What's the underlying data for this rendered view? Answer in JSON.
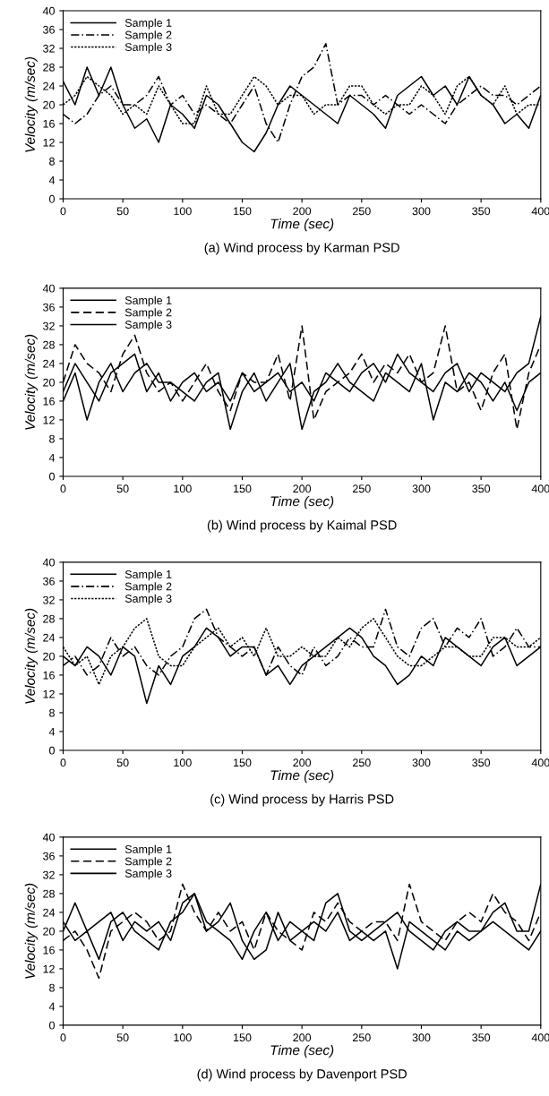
{
  "chart_data": [
    {
      "type": "line",
      "title": "(a) Wind process by Karman PSD",
      "xlabel": "Time (sec)",
      "ylabel": "Velocity (m/sec)",
      "xlim": [
        0,
        400
      ],
      "ylim": [
        0,
        40
      ],
      "xticks": [
        0,
        50,
        100,
        150,
        200,
        250,
        300,
        350,
        400
      ],
      "yticks": [
        0,
        4,
        8,
        12,
        16,
        20,
        24,
        28,
        32,
        36,
        40
      ],
      "grid": false,
      "legend": "top left",
      "marker": "none",
      "x": [
        0,
        10,
        20,
        30,
        40,
        50,
        60,
        70,
        80,
        90,
        100,
        110,
        120,
        130,
        140,
        150,
        160,
        170,
        180,
        190,
        200,
        210,
        220,
        230,
        240,
        250,
        260,
        270,
        280,
        290,
        300,
        310,
        320,
        330,
        340,
        350,
        360,
        370,
        380,
        390,
        400
      ],
      "series": [
        {
          "name": "Sample 1",
          "color": "#000000",
          "line_style": "solid",
          "values": [
            25,
            20,
            28,
            22,
            28,
            20,
            15,
            17,
            12,
            20,
            18,
            15,
            22,
            20,
            16,
            12,
            10,
            14,
            20,
            24,
            22,
            20,
            18,
            16,
            22,
            20,
            18,
            15,
            22,
            24,
            26,
            22,
            24,
            20,
            26,
            22,
            20,
            16,
            18,
            15,
            22
          ]
        },
        {
          "name": "Sample 2",
          "color": "#000000",
          "line_style": "dashdot",
          "values": [
            18,
            16,
            18,
            22,
            24,
            20,
            20,
            22,
            26,
            20,
            22,
            18,
            20,
            18,
            16,
            20,
            24,
            16,
            12,
            20,
            26,
            28,
            33,
            20,
            22,
            22,
            20,
            22,
            20,
            18,
            20,
            18,
            16,
            20,
            22,
            24,
            22,
            22,
            20,
            22,
            24
          ]
        },
        {
          "name": "Sample 3",
          "color": "#000000",
          "line_style": "dotted",
          "values": [
            20,
            22,
            26,
            24,
            22,
            18,
            20,
            18,
            24,
            20,
            16,
            16,
            24,
            18,
            18,
            22,
            26,
            24,
            20,
            22,
            22,
            18,
            20,
            20,
            24,
            24,
            20,
            18,
            20,
            20,
            24,
            22,
            18,
            24,
            26,
            22,
            20,
            24,
            18,
            20,
            20
          ]
        }
      ]
    },
    {
      "type": "line",
      "title": "(b) Wind process by Kaimal PSD",
      "xlabel": "Time (sec)",
      "ylabel": "Velocity (m/sec)",
      "xlim": [
        0,
        400
      ],
      "ylim": [
        0,
        40
      ],
      "xticks": [
        0,
        50,
        100,
        150,
        200,
        250,
        300,
        350,
        400
      ],
      "yticks": [
        0,
        4,
        8,
        12,
        16,
        20,
        24,
        28,
        32,
        36,
        40
      ],
      "grid": false,
      "legend": "top left",
      "marker": "none",
      "x": [
        0,
        10,
        20,
        30,
        40,
        50,
        60,
        70,
        80,
        90,
        100,
        110,
        120,
        130,
        140,
        150,
        160,
        170,
        180,
        190,
        200,
        210,
        220,
        230,
        240,
        250,
        260,
        270,
        280,
        290,
        300,
        310,
        320,
        330,
        340,
        350,
        360,
        370,
        380,
        390,
        400
      ],
      "series": [
        {
          "name": "Sample 1",
          "color": "#000000",
          "line_style": "solid",
          "values": [
            16,
            22,
            12,
            20,
            24,
            18,
            22,
            24,
            20,
            20,
            18,
            16,
            20,
            22,
            10,
            18,
            22,
            16,
            20,
            24,
            10,
            18,
            20,
            24,
            20,
            18,
            16,
            22,
            20,
            18,
            24,
            12,
            20,
            18,
            22,
            20,
            16,
            20,
            14,
            20,
            22
          ]
        },
        {
          "name": "Sample 2",
          "color": "#000000",
          "line_style": "dashed",
          "values": [
            20,
            28,
            24,
            22,
            18,
            26,
            30,
            22,
            18,
            20,
            16,
            20,
            24,
            18,
            14,
            22,
            20,
            20,
            26,
            16,
            32,
            12,
            18,
            20,
            22,
            26,
            20,
            24,
            22,
            26,
            20,
            22,
            32,
            18,
            20,
            14,
            22,
            26,
            10,
            22,
            28
          ]
        },
        {
          "name": "Sample 3",
          "color": "#000000",
          "line_style": "solid",
          "values": [
            18,
            24,
            20,
            16,
            22,
            24,
            26,
            18,
            22,
            16,
            20,
            22,
            18,
            20,
            16,
            22,
            18,
            20,
            22,
            18,
            20,
            16,
            22,
            20,
            18,
            22,
            24,
            20,
            26,
            22,
            20,
            18,
            22,
            24,
            18,
            22,
            20,
            18,
            22,
            24,
            34
          ]
        }
      ]
    },
    {
      "type": "line",
      "title": "(c) Wind process by Harris PSD",
      "xlabel": "Time (sec)",
      "ylabel": "Velocity (m/sec)",
      "xlim": [
        0,
        400
      ],
      "ylim": [
        0,
        40
      ],
      "xticks": [
        0,
        50,
        100,
        150,
        200,
        250,
        300,
        350,
        400
      ],
      "yticks": [
        0,
        4,
        8,
        12,
        16,
        20,
        24,
        28,
        32,
        36,
        40
      ],
      "grid": false,
      "legend": "top left",
      "marker": "none",
      "x": [
        0,
        10,
        20,
        30,
        40,
        50,
        60,
        70,
        80,
        90,
        100,
        110,
        120,
        130,
        140,
        150,
        160,
        170,
        180,
        190,
        200,
        210,
        220,
        230,
        240,
        250,
        260,
        270,
        280,
        290,
        300,
        310,
        320,
        330,
        340,
        350,
        360,
        370,
        380,
        390,
        400
      ],
      "series": [
        {
          "name": "Sample 1",
          "color": "#000000",
          "line_style": "solid",
          "values": [
            20,
            18,
            22,
            20,
            16,
            22,
            20,
            10,
            18,
            14,
            20,
            22,
            26,
            24,
            20,
            22,
            22,
            16,
            18,
            14,
            18,
            20,
            22,
            24,
            26,
            24,
            20,
            18,
            14,
            16,
            20,
            18,
            24,
            22,
            20,
            18,
            22,
            24,
            18,
            20,
            22
          ]
        },
        {
          "name": "Sample 2",
          "color": "#000000",
          "line_style": "dashdot",
          "values": [
            18,
            20,
            16,
            18,
            24,
            20,
            22,
            18,
            16,
            20,
            22,
            28,
            30,
            24,
            22,
            20,
            22,
            16,
            22,
            18,
            16,
            22,
            18,
            20,
            24,
            22,
            22,
            30,
            22,
            20,
            26,
            28,
            22,
            26,
            24,
            28,
            20,
            22,
            26,
            22,
            22
          ]
        },
        {
          "name": "Sample 3",
          "color": "#000000",
          "line_style": "dotted",
          "values": [
            22,
            18,
            20,
            14,
            20,
            22,
            26,
            28,
            20,
            18,
            18,
            22,
            24,
            26,
            22,
            24,
            20,
            26,
            20,
            20,
            22,
            20,
            20,
            24,
            22,
            26,
            28,
            24,
            20,
            18,
            18,
            20,
            22,
            22,
            20,
            20,
            24,
            24,
            22,
            22,
            24
          ]
        }
      ]
    },
    {
      "type": "line",
      "title": "(d) Wind process by Davenport PSD",
      "xlabel": "Time (sec)",
      "ylabel": "Velocity (m/sec)",
      "xlim": [
        0,
        400
      ],
      "ylim": [
        0,
        40
      ],
      "xticks": [
        0,
        50,
        100,
        150,
        200,
        250,
        300,
        350,
        400
      ],
      "yticks": [
        0,
        4,
        8,
        12,
        16,
        20,
        24,
        28,
        32,
        36,
        40
      ],
      "grid": false,
      "legend": "top left",
      "marker": "none",
      "x": [
        0,
        10,
        20,
        30,
        40,
        50,
        60,
        70,
        80,
        90,
        100,
        110,
        120,
        130,
        140,
        150,
        160,
        170,
        180,
        190,
        200,
        210,
        220,
        230,
        240,
        250,
        260,
        270,
        280,
        290,
        300,
        310,
        320,
        330,
        340,
        350,
        360,
        370,
        380,
        390,
        400
      ],
      "series": [
        {
          "name": "Sample 1",
          "color": "#000000",
          "line_style": "solid",
          "values": [
            20,
            26,
            20,
            22,
            24,
            18,
            22,
            20,
            22,
            18,
            26,
            28,
            22,
            20,
            18,
            14,
            20,
            24,
            18,
            22,
            20,
            18,
            26,
            28,
            20,
            18,
            20,
            22,
            24,
            20,
            18,
            16,
            20,
            22,
            20,
            20,
            24,
            26,
            20,
            20,
            30
          ]
        },
        {
          "name": "Sample 2",
          "color": "#000000",
          "line_style": "dashed",
          "values": [
            18,
            20,
            16,
            10,
            20,
            22,
            24,
            22,
            18,
            20,
            30,
            24,
            20,
            24,
            20,
            22,
            16,
            24,
            20,
            18,
            16,
            24,
            22,
            26,
            22,
            20,
            22,
            22,
            18,
            30,
            22,
            20,
            18,
            22,
            24,
            22,
            28,
            24,
            22,
            18,
            24
          ]
        },
        {
          "name": "Sample 3",
          "color": "#000000",
          "line_style": "solid",
          "values": [
            22,
            18,
            20,
            14,
            22,
            24,
            20,
            18,
            16,
            22,
            24,
            28,
            20,
            22,
            26,
            18,
            14,
            16,
            24,
            18,
            20,
            22,
            20,
            24,
            18,
            20,
            18,
            20,
            12,
            22,
            20,
            18,
            16,
            20,
            18,
            20,
            22,
            20,
            18,
            16,
            20
          ]
        }
      ]
    }
  ]
}
